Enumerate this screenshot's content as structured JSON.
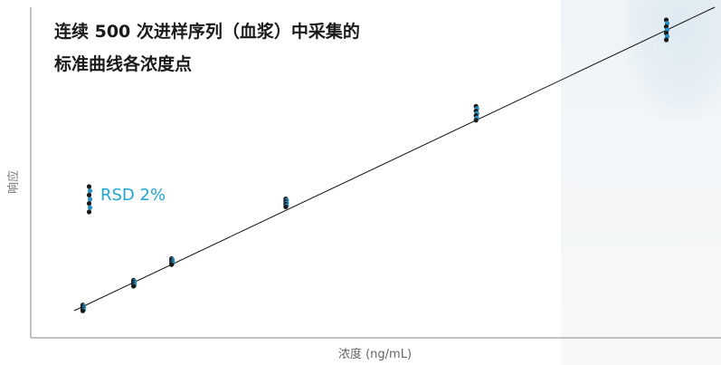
{
  "chart_data": {
    "type": "scatter",
    "title_lines": [
      "连续 500 次进样序列（血浆）中采集的",
      "标准曲线各浓度点"
    ],
    "xlabel": "浓度 (ng/mL)",
    "ylabel": "响应",
    "annotation": "RSD 2%",
    "grid": false,
    "legend": "none",
    "series": [
      {
        "role": "calibration-points",
        "points": [
          {
            "x": 0.08,
            "y": 0.09
          },
          {
            "x": 0.16,
            "y": 0.17
          },
          {
            "x": 0.22,
            "y": 0.24
          },
          {
            "x": 0.4,
            "y": 0.43
          },
          {
            "x": 0.7,
            "y": 0.72
          },
          {
            "x": 1.0,
            "y": 0.99
          }
        ],
        "replicate_spread": [
          0.015,
          0.015,
          0.015,
          0.02,
          0.035,
          0.05
        ]
      },
      {
        "role": "rsd-illustration-points",
        "points": [
          {
            "x": 0.01,
            "y": 0.52
          }
        ],
        "replicate_spread": [
          0.12
        ]
      }
    ],
    "fit_line": {
      "x_start": 0.0,
      "y_start": 0.06,
      "x_end": 1.1,
      "y_end": 1.1
    },
    "xlim": [
      0,
      1.1
    ],
    "ylim": [
      0,
      1.1
    ]
  },
  "colors": {
    "point_dark": "#1a1a1a",
    "point_blue": "#2a8fc4",
    "accent": "#1fa6d6",
    "axis": "#888888",
    "fit_line": "#111111"
  }
}
